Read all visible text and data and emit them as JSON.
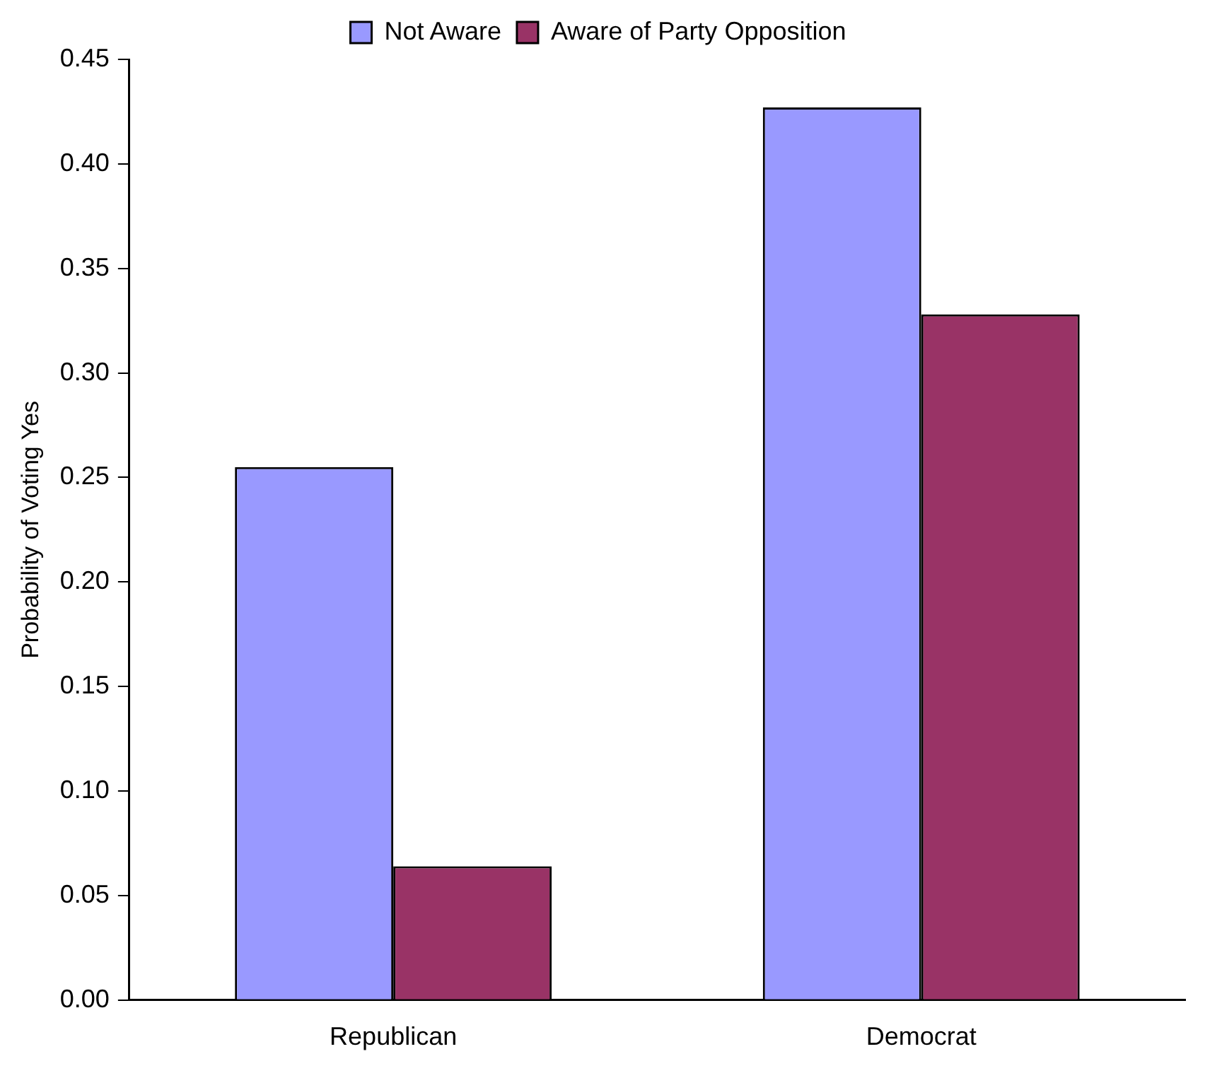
{
  "chart_data": {
    "type": "bar",
    "ylabel": "Probability of Voting Yes",
    "categories": [
      "Republican",
      "Democrat"
    ],
    "series": [
      {
        "name": "Not Aware",
        "color": "#9999ff",
        "values": [
          0.255,
          0.427
        ]
      },
      {
        "name": "Aware of Party Opposition",
        "color": "#993366",
        "values": [
          0.064,
          0.328
        ]
      }
    ],
    "ylim": [
      0,
      0.45
    ],
    "yticks": [
      {
        "value": 0,
        "label": "0.00"
      },
      {
        "value": 0.05,
        "label": "0.05"
      },
      {
        "value": 0.1,
        "label": "0.10"
      },
      {
        "value": 0.15,
        "label": "0.15"
      },
      {
        "value": 0.2,
        "label": "0.20"
      },
      {
        "value": 0.25,
        "label": "0.25"
      },
      {
        "value": 0.3,
        "label": "0.30"
      },
      {
        "value": 0.35,
        "label": "0.35"
      },
      {
        "value": 0.4,
        "label": "0.40"
      },
      {
        "value": 0.45,
        "label": "0.45"
      }
    ],
    "grid": false,
    "legend": "top"
  }
}
